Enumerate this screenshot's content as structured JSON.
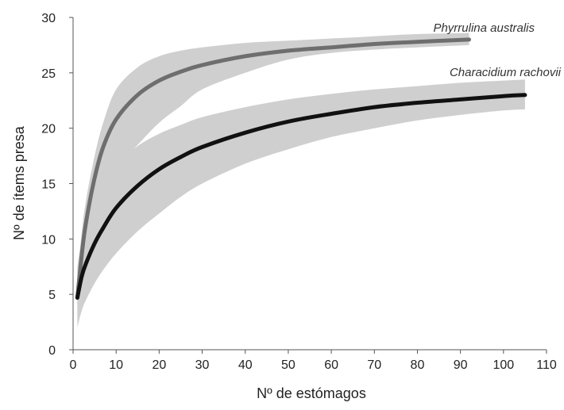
{
  "chart_data": {
    "type": "line",
    "xlabel": "Nº de estómagos",
    "ylabel": "Nº de ítems presa",
    "xlim": [
      0,
      110
    ],
    "ylim": [
      0,
      30
    ],
    "xticks": [
      "0",
      "10",
      "20",
      "30",
      "40",
      "50",
      "60",
      "70",
      "80",
      "90",
      "100",
      "110"
    ],
    "yticks": [
      "0",
      "5",
      "10",
      "15",
      "20",
      "25",
      "30"
    ],
    "grid": false,
    "series": [
      {
        "name": "Phyrrulina australis",
        "color": "#6e6e6e",
        "x": [
          1,
          2,
          3,
          5,
          7,
          10,
          15,
          20,
          25,
          30,
          40,
          50,
          60,
          70,
          80,
          92
        ],
        "y": [
          4.7,
          8.5,
          11.5,
          15.5,
          18.3,
          20.8,
          23.0,
          24.3,
          25.1,
          25.7,
          26.5,
          27.0,
          27.3,
          27.6,
          27.8,
          28.0
        ],
        "ci_low": [
          3.0,
          7.0,
          9.5,
          12.5,
          14.5,
          16.5,
          18.5,
          20.5,
          22.0,
          23.5,
          25.0,
          26.2,
          26.8,
          27.1,
          27.3,
          27.5
        ],
        "ci_high": [
          6.5,
          10.5,
          13.5,
          17.5,
          20.5,
          23.5,
          25.5,
          26.5,
          27.0,
          27.3,
          27.7,
          27.9,
          28.1,
          28.3,
          28.5,
          28.6
        ]
      },
      {
        "name": "Characidium rachovii",
        "color": "#111111",
        "x": [
          1,
          2,
          3,
          5,
          7,
          10,
          15,
          20,
          25,
          30,
          40,
          50,
          60,
          70,
          80,
          90,
          100,
          105
        ],
        "y": [
          4.7,
          6.6,
          7.8,
          9.6,
          11.0,
          12.8,
          14.8,
          16.3,
          17.4,
          18.3,
          19.6,
          20.6,
          21.3,
          21.9,
          22.3,
          22.6,
          22.9,
          23.0
        ],
        "ci_low": [
          2.0,
          3.5,
          4.5,
          6.0,
          7.2,
          8.7,
          10.7,
          12.3,
          13.8,
          15.0,
          16.8,
          18.1,
          19.2,
          20.0,
          20.7,
          21.2,
          21.6,
          21.7
        ],
        "ci_high": [
          7.5,
          10.0,
          11.5,
          13.5,
          15.2,
          16.8,
          18.4,
          19.5,
          20.3,
          21.0,
          21.9,
          22.6,
          23.1,
          23.5,
          23.8,
          24.1,
          24.3,
          24.4
        ]
      }
    ],
    "band_color": "#cfcfcf"
  }
}
